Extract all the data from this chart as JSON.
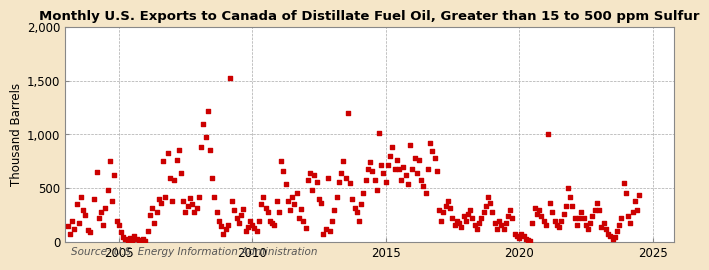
{
  "title": "Monthly U.S. Exports to Canada of Distillate Fuel Oil, Greater than 15 to 500 ppm Sulfur",
  "ylabel": "Thousand Barrels",
  "source": "Source: U.S. Energy Information Administration",
  "figure_bg": "#f5e6c8",
  "plot_bg": "#ffffff",
  "dot_color": "#cc0000",
  "dot_size": 7,
  "ylim": [
    0,
    2000
  ],
  "yticks": [
    0,
    500,
    1000,
    1500,
    2000
  ],
  "xlim_start": 2003.0,
  "xlim_end": 2025.8,
  "xticks": [
    2005,
    2010,
    2015,
    2020,
    2025
  ],
  "grid_color": "#aaaaaa",
  "title_fontsize": 9.5,
  "ylabel_fontsize": 8.5,
  "tick_fontsize": 8.5,
  "source_fontsize": 7.5,
  "data": [
    [
      2003.083,
      150
    ],
    [
      2003.167,
      80
    ],
    [
      2003.25,
      200
    ],
    [
      2003.333,
      120
    ],
    [
      2003.417,
      350
    ],
    [
      2003.5,
      180
    ],
    [
      2003.583,
      420
    ],
    [
      2003.667,
      300
    ],
    [
      2003.75,
      250
    ],
    [
      2003.833,
      110
    ],
    [
      2003.917,
      90
    ],
    [
      2004.083,
      400
    ],
    [
      2004.167,
      650
    ],
    [
      2004.25,
      220
    ],
    [
      2004.333,
      280
    ],
    [
      2004.417,
      160
    ],
    [
      2004.5,
      320
    ],
    [
      2004.583,
      480
    ],
    [
      2004.667,
      750
    ],
    [
      2004.75,
      380
    ],
    [
      2004.833,
      620
    ],
    [
      2004.917,
      200
    ],
    [
      2005.0,
      160
    ],
    [
      2005.083,
      90
    ],
    [
      2005.167,
      50
    ],
    [
      2005.25,
      30
    ],
    [
      2005.333,
      20
    ],
    [
      2005.417,
      40
    ],
    [
      2005.5,
      10
    ],
    [
      2005.583,
      60
    ],
    [
      2005.667,
      30
    ],
    [
      2005.75,
      20
    ],
    [
      2005.833,
      10
    ],
    [
      2005.917,
      25
    ],
    [
      2006.0,
      15
    ],
    [
      2006.083,
      100
    ],
    [
      2006.167,
      250
    ],
    [
      2006.25,
      320
    ],
    [
      2006.333,
      180
    ],
    [
      2006.417,
      280
    ],
    [
      2006.5,
      400
    ],
    [
      2006.583,
      360
    ],
    [
      2006.667,
      750
    ],
    [
      2006.75,
      420
    ],
    [
      2006.833,
      830
    ],
    [
      2006.917,
      600
    ],
    [
      2007.0,
      380
    ],
    [
      2007.083,
      580
    ],
    [
      2007.167,
      760
    ],
    [
      2007.25,
      860
    ],
    [
      2007.333,
      640
    ],
    [
      2007.417,
      380
    ],
    [
      2007.5,
      280
    ],
    [
      2007.583,
      340
    ],
    [
      2007.667,
      410
    ],
    [
      2007.75,
      350
    ],
    [
      2007.833,
      280
    ],
    [
      2007.917,
      320
    ],
    [
      2008.0,
      420
    ],
    [
      2008.083,
      880
    ],
    [
      2008.167,
      1100
    ],
    [
      2008.25,
      980
    ],
    [
      2008.333,
      1220
    ],
    [
      2008.417,
      860
    ],
    [
      2008.5,
      600
    ],
    [
      2008.583,
      420
    ],
    [
      2008.667,
      280
    ],
    [
      2008.75,
      200
    ],
    [
      2008.833,
      150
    ],
    [
      2008.917,
      80
    ],
    [
      2009.0,
      120
    ],
    [
      2009.083,
      160
    ],
    [
      2009.167,
      1520
    ],
    [
      2009.25,
      380
    ],
    [
      2009.333,
      300
    ],
    [
      2009.417,
      220
    ],
    [
      2009.5,
      180
    ],
    [
      2009.583,
      250
    ],
    [
      2009.667,
      310
    ],
    [
      2009.75,
      100
    ],
    [
      2009.833,
      140
    ],
    [
      2009.917,
      200
    ],
    [
      2010.0,
      160
    ],
    [
      2010.083,
      130
    ],
    [
      2010.167,
      100
    ],
    [
      2010.25,
      200
    ],
    [
      2010.333,
      350
    ],
    [
      2010.417,
      420
    ],
    [
      2010.5,
      320
    ],
    [
      2010.583,
      280
    ],
    [
      2010.667,
      200
    ],
    [
      2010.75,
      180
    ],
    [
      2010.833,
      160
    ],
    [
      2010.917,
      380
    ],
    [
      2011.0,
      280
    ],
    [
      2011.083,
      750
    ],
    [
      2011.167,
      660
    ],
    [
      2011.25,
      540
    ],
    [
      2011.333,
      380
    ],
    [
      2011.417,
      300
    ],
    [
      2011.5,
      420
    ],
    [
      2011.583,
      350
    ],
    [
      2011.667,
      460
    ],
    [
      2011.75,
      220
    ],
    [
      2011.833,
      310
    ],
    [
      2011.917,
      200
    ],
    [
      2012.0,
      130
    ],
    [
      2012.083,
      580
    ],
    [
      2012.167,
      640
    ],
    [
      2012.25,
      480
    ],
    [
      2012.333,
      620
    ],
    [
      2012.417,
      560
    ],
    [
      2012.5,
      400
    ],
    [
      2012.583,
      360
    ],
    [
      2012.667,
      80
    ],
    [
      2012.75,
      120
    ],
    [
      2012.833,
      600
    ],
    [
      2012.917,
      100
    ],
    [
      2013.0,
      200
    ],
    [
      2013.083,
      300
    ],
    [
      2013.167,
      420
    ],
    [
      2013.25,
      560
    ],
    [
      2013.333,
      640
    ],
    [
      2013.417,
      750
    ],
    [
      2013.5,
      600
    ],
    [
      2013.583,
      1200
    ],
    [
      2013.667,
      550
    ],
    [
      2013.75,
      400
    ],
    [
      2013.833,
      320
    ],
    [
      2013.917,
      280
    ],
    [
      2014.0,
      200
    ],
    [
      2014.083,
      350
    ],
    [
      2014.167,
      460
    ],
    [
      2014.25,
      580
    ],
    [
      2014.333,
      680
    ],
    [
      2014.417,
      740
    ],
    [
      2014.5,
      660
    ],
    [
      2014.583,
      580
    ],
    [
      2014.667,
      480
    ],
    [
      2014.75,
      1010
    ],
    [
      2014.833,
      720
    ],
    [
      2014.917,
      640
    ],
    [
      2015.0,
      560
    ],
    [
      2015.083,
      720
    ],
    [
      2015.167,
      800
    ],
    [
      2015.25,
      880
    ],
    [
      2015.333,
      680
    ],
    [
      2015.417,
      760
    ],
    [
      2015.5,
      680
    ],
    [
      2015.583,
      580
    ],
    [
      2015.667,
      700
    ],
    [
      2015.75,
      620
    ],
    [
      2015.833,
      540
    ],
    [
      2015.917,
      900
    ],
    [
      2016.0,
      680
    ],
    [
      2016.083,
      780
    ],
    [
      2016.167,
      640
    ],
    [
      2016.25,
      760
    ],
    [
      2016.333,
      580
    ],
    [
      2016.417,
      520
    ],
    [
      2016.5,
      460
    ],
    [
      2016.583,
      680
    ],
    [
      2016.667,
      920
    ],
    [
      2016.75,
      850
    ],
    [
      2016.833,
      780
    ],
    [
      2016.917,
      660
    ],
    [
      2017.0,
      300
    ],
    [
      2017.083,
      200
    ],
    [
      2017.167,
      280
    ],
    [
      2017.25,
      340
    ],
    [
      2017.333,
      380
    ],
    [
      2017.417,
      320
    ],
    [
      2017.5,
      220
    ],
    [
      2017.583,
      160
    ],
    [
      2017.667,
      200
    ],
    [
      2017.75,
      180
    ],
    [
      2017.833,
      140
    ],
    [
      2017.917,
      240
    ],
    [
      2018.0,
      200
    ],
    [
      2018.083,
      260
    ],
    [
      2018.167,
      300
    ],
    [
      2018.25,
      220
    ],
    [
      2018.333,
      160
    ],
    [
      2018.417,
      120
    ],
    [
      2018.5,
      180
    ],
    [
      2018.583,
      220
    ],
    [
      2018.667,
      280
    ],
    [
      2018.75,
      340
    ],
    [
      2018.833,
      420
    ],
    [
      2018.917,
      360
    ],
    [
      2019.0,
      280
    ],
    [
      2019.083,
      180
    ],
    [
      2019.167,
      120
    ],
    [
      2019.25,
      200
    ],
    [
      2019.333,
      160
    ],
    [
      2019.417,
      120
    ],
    [
      2019.5,
      180
    ],
    [
      2019.583,
      240
    ],
    [
      2019.667,
      300
    ],
    [
      2019.75,
      220
    ],
    [
      2019.833,
      80
    ],
    [
      2019.917,
      60
    ],
    [
      2020.0,
      40
    ],
    [
      2020.083,
      80
    ],
    [
      2020.167,
      60
    ],
    [
      2020.25,
      30
    ],
    [
      2020.333,
      20
    ],
    [
      2020.417,
      10
    ],
    [
      2020.5,
      180
    ],
    [
      2020.583,
      320
    ],
    [
      2020.667,
      260
    ],
    [
      2020.75,
      300
    ],
    [
      2020.833,
      240
    ],
    [
      2020.917,
      200
    ],
    [
      2021.0,
      160
    ],
    [
      2021.083,
      1000
    ],
    [
      2021.167,
      360
    ],
    [
      2021.25,
      280
    ],
    [
      2021.333,
      200
    ],
    [
      2021.417,
      160
    ],
    [
      2021.5,
      140
    ],
    [
      2021.583,
      200
    ],
    [
      2021.667,
      260
    ],
    [
      2021.75,
      340
    ],
    [
      2021.833,
      500
    ],
    [
      2021.917,
      420
    ],
    [
      2022.0,
      340
    ],
    [
      2022.083,
      220
    ],
    [
      2022.167,
      160
    ],
    [
      2022.25,
      220
    ],
    [
      2022.333,
      280
    ],
    [
      2022.417,
      220
    ],
    [
      2022.5,
      160
    ],
    [
      2022.583,
      120
    ],
    [
      2022.667,
      180
    ],
    [
      2022.75,
      240
    ],
    [
      2022.833,
      300
    ],
    [
      2022.917,
      360
    ],
    [
      2023.0,
      300
    ],
    [
      2023.083,
      140
    ],
    [
      2023.167,
      180
    ],
    [
      2023.25,
      120
    ],
    [
      2023.333,
      80
    ],
    [
      2023.417,
      60
    ],
    [
      2023.5,
      30
    ],
    [
      2023.583,
      50
    ],
    [
      2023.667,
      100
    ],
    [
      2023.75,
      160
    ],
    [
      2023.833,
      220
    ],
    [
      2023.917,
      550
    ],
    [
      2024.0,
      460
    ],
    [
      2024.083,
      240
    ],
    [
      2024.167,
      180
    ],
    [
      2024.25,
      280
    ],
    [
      2024.333,
      380
    ],
    [
      2024.417,
      300
    ],
    [
      2024.5,
      440
    ]
  ]
}
